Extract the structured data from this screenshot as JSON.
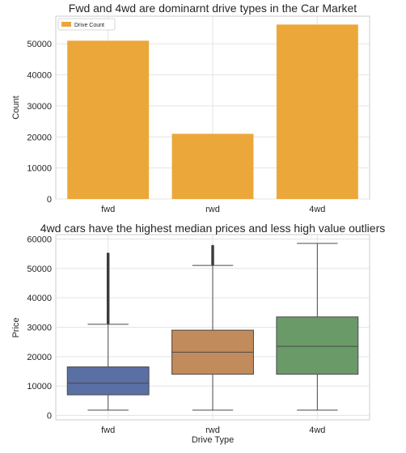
{
  "chart_data": [
    {
      "type": "bar",
      "title": "Fwd and 4wd are dominarnt drive types in the Car Market",
      "xlabel": "",
      "ylabel": "Count",
      "categories": [
        "fwd",
        "rwd",
        "4wd"
      ],
      "series": [
        {
          "name": "Drive Count",
          "values": [
            51000,
            21000,
            56200
          ],
          "color": "#eba73a"
        }
      ],
      "ylim": [
        0,
        58900
      ],
      "yticks": [
        0,
        10000,
        20000,
        30000,
        40000,
        50000
      ],
      "ytick_labels": [
        "0",
        "10000",
        "20000",
        "30000",
        "40000",
        "50000"
      ],
      "grid": true,
      "legend": "top-left"
    },
    {
      "type": "box",
      "title": "4wd cars have the highest median prices and less high value outliers",
      "xlabel": "Drive Type",
      "ylabel": "Price",
      "categories": [
        "fwd",
        "rwd",
        "4wd"
      ],
      "boxes": [
        {
          "category": "fwd",
          "whisker_low": 1800,
          "q1": 7000,
          "median": 11000,
          "q3": 16500,
          "whisker_high": 31000,
          "outliers_from": 31500,
          "outliers_to": 55000,
          "color": "#5a6fa3"
        },
        {
          "category": "rwd",
          "whisker_low": 1800,
          "q1": 14000,
          "median": 21500,
          "q3": 29000,
          "whisker_high": 51000,
          "outliers_from": 51500,
          "outliers_to": 58000,
          "color": "#c28b5c"
        },
        {
          "category": "4wd",
          "whisker_low": 1800,
          "q1": 14000,
          "median": 23500,
          "q3": 33500,
          "whisker_high": 58500,
          "outliers_from": null,
          "outliers_to": null,
          "color": "#6b9a69"
        }
      ],
      "ylim": [
        -1500,
        61500
      ],
      "yticks": [
        0,
        10000,
        20000,
        30000,
        40000,
        50000,
        60000
      ],
      "ytick_labels": [
        "0",
        "10000",
        "20000",
        "30000",
        "40000",
        "50000",
        "60000"
      ],
      "grid": true
    }
  ]
}
